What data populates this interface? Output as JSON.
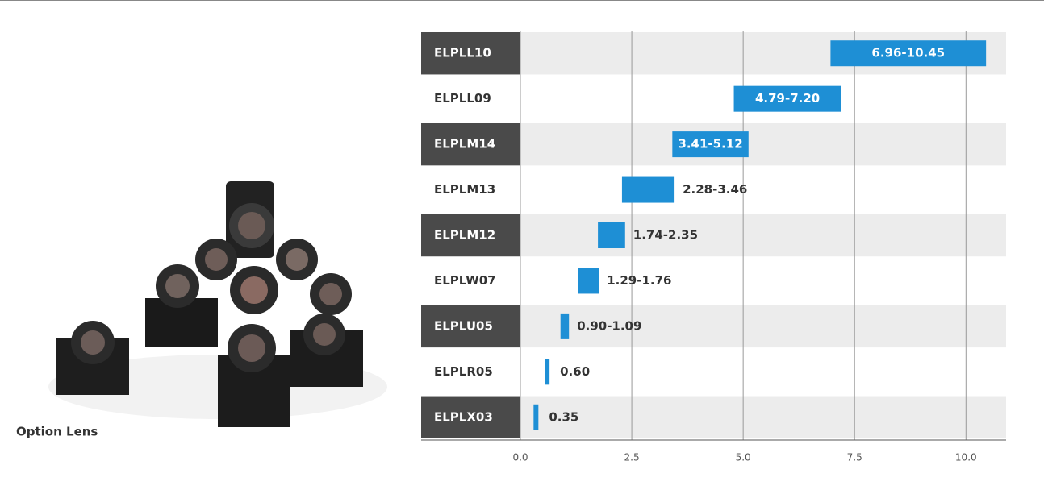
{
  "caption": "Option Lens",
  "chart_data": {
    "type": "range-bar",
    "categories": [
      "ELPLL10",
      "ELPLL09",
      "ELPLM14",
      "ELPLM13",
      "ELPLM12",
      "ELPLW07",
      "ELPLU05",
      "ELPLR05",
      "ELPLX03"
    ],
    "low": [
      6.96,
      4.79,
      3.41,
      2.28,
      1.74,
      1.29,
      0.9,
      0.6,
      0.35
    ],
    "high": [
      10.45,
      7.2,
      5.12,
      3.46,
      2.35,
      1.76,
      1.09,
      0.6,
      0.35
    ],
    "value_labels": [
      "6.96-10.45",
      "4.79-7.20",
      "3.41-5.12",
      "2.28-3.46",
      "1.74-2.35",
      "1.29-1.76",
      "0.90-1.09",
      "0.60",
      "0.35"
    ],
    "color": "#1e8fd5",
    "xlim": [
      0,
      10.9
    ],
    "xticks": [
      {
        "value": 0,
        "label": "0.0"
      },
      2.5,
      {
        "value": 5,
        "label": "5.0"
      },
      7.5,
      {
        "value": 10,
        "label": "10.0"
      }
    ],
    "grid": true
  }
}
